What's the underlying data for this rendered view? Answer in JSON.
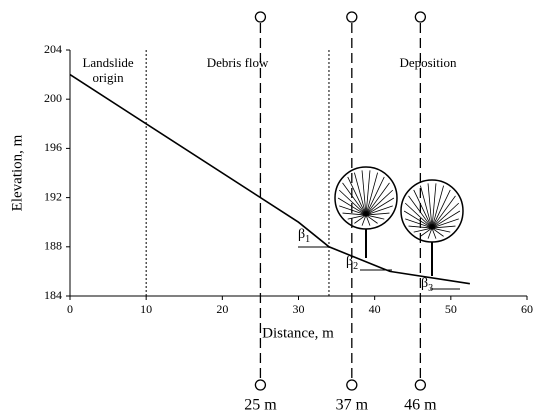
{
  "chart_data": {
    "type": "line",
    "xlabel": "Distance, m",
    "ylabel": "Elevation, m",
    "x": [
      0,
      30,
      34,
      42,
      52.5
    ],
    "series": [
      {
        "values": [
          202,
          190,
          188,
          186,
          185
        ],
        "color": "#000000"
      }
    ],
    "xlim": [
      0,
      60
    ],
    "ylim": [
      184,
      204
    ],
    "xticks": [
      0,
      10,
      20,
      30,
      40,
      50,
      60
    ],
    "yticks": [
      184,
      188,
      192,
      196,
      200,
      204
    ],
    "zones": {
      "boundaries": [
        10,
        34
      ],
      "labels": [
        "Landslide origin",
        "Debris flow",
        "Deposition"
      ]
    },
    "angles": [
      {
        "symbol": "β",
        "sub": "1"
      },
      {
        "symbol": "β",
        "sub": "2"
      },
      {
        "symbol": "β",
        "sub": "3"
      }
    ],
    "markers": [
      {
        "value": 25,
        "label": "25 m"
      },
      {
        "value": 37,
        "label": "37 m"
      },
      {
        "value": 46,
        "label": "46 m"
      }
    ]
  }
}
